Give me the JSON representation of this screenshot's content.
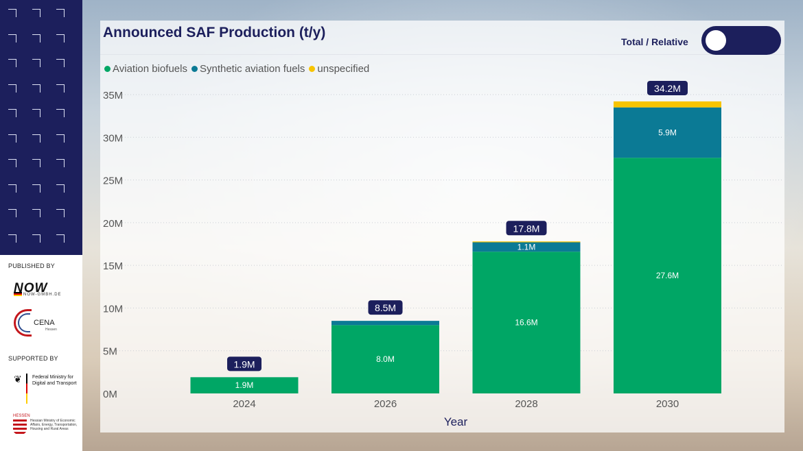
{
  "sidebar": {
    "published_by": "PUBLISHED BY",
    "supported_by": "SUPPORTED BY",
    "logos": {
      "now": "NOW",
      "now_sub": "NOW-GMBH.DE",
      "cena": "CENA",
      "cena_sub": "Hessen",
      "bmdv": "Federal Ministry for Digital and Transport",
      "hessen_label": "HESSEN",
      "hessen": "Hessian Ministry of Economic Affairs, Energy, Transportation, Housing and Rural Areas"
    }
  },
  "header": {
    "title": "Announced SAF Production (t/y)"
  },
  "toggle": {
    "label": "Total / Relative",
    "state": "total"
  },
  "chart_data": {
    "type": "bar",
    "stacked": true,
    "title": "Announced SAF Production (t/y)",
    "xlabel": "Year",
    "ylabel": "",
    "categories": [
      "2024",
      "2026",
      "2028",
      "2030"
    ],
    "ylim": [
      0,
      35000000
    ],
    "yticks": [
      0,
      5000000,
      10000000,
      15000000,
      20000000,
      25000000,
      30000000,
      35000000
    ],
    "ytick_labels": [
      "0M",
      "5M",
      "10M",
      "15M",
      "20M",
      "25M",
      "30M",
      "35M"
    ],
    "grid": true,
    "legend_position": "top-left",
    "series": [
      {
        "name": "Aviation biofuels",
        "color": "#00a665",
        "values": [
          1900000,
          8000000,
          16600000,
          27600000
        ],
        "labels": [
          "1.9M",
          "8.0M",
          "16.6M",
          "27.6M"
        ]
      },
      {
        "name": "Synthetic aviation fuels",
        "color": "#0b7a95",
        "values": [
          0,
          500000,
          1100000,
          5900000
        ],
        "labels": [
          "",
          "",
          "1.1M",
          "5.9M"
        ]
      },
      {
        "name": "unspecified",
        "color": "#f8c400",
        "values": [
          0,
          0,
          100000,
          700000
        ],
        "labels": [
          "",
          "",
          "",
          ""
        ]
      }
    ],
    "totals": [
      1900000,
      8500000,
      17800000,
      34200000
    ],
    "total_labels": [
      "1.9M",
      "8.5M",
      "17.8M",
      "34.2M"
    ]
  }
}
